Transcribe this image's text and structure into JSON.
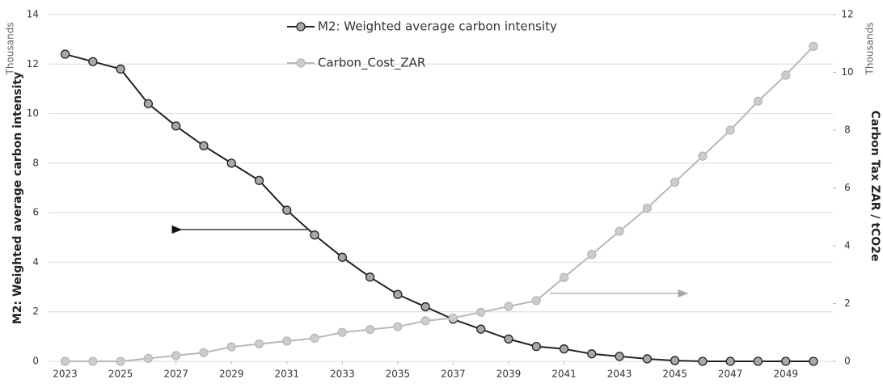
{
  "chart_data": {
    "type": "line",
    "y_label": "M2: Weighted average carbon intensity",
    "y2_label": "Carbon Tax ZAR / tCO2e",
    "y_unit": "Thousands",
    "y2_unit": "Thousands",
    "x": [
      2023,
      2024,
      2025,
      2026,
      2027,
      2028,
      2029,
      2030,
      2031,
      2032,
      2033,
      2034,
      2035,
      2036,
      2037,
      2038,
      2039,
      2040,
      2041,
      2042,
      2043,
      2044,
      2045,
      2046,
      2047,
      2048,
      2049,
      2050
    ],
    "series": [
      {
        "name": "M2: Weighted average carbon intensity",
        "color": "#222222",
        "marker_fill": "#a8a8a8",
        "axis": "y",
        "values": [
          12.4,
          12.1,
          11.8,
          10.4,
          9.5,
          8.7,
          8.0,
          7.3,
          6.1,
          5.1,
          4.2,
          3.4,
          2.7,
          2.2,
          1.7,
          1.3,
          0.9,
          0.6,
          0.5,
          0.3,
          0.2,
          0.1,
          0.03,
          0,
          0,
          0,
          0,
          0
        ]
      },
      {
        "name": "Carbon_Cost_ZAR",
        "color": "#b8b8b8",
        "marker_fill": "#cccccc",
        "axis": "y2",
        "values": [
          0,
          0,
          0,
          0.1,
          0.2,
          0.3,
          0.5,
          0.6,
          0.7,
          0.8,
          1.0,
          1.1,
          1.2,
          1.4,
          1.5,
          1.7,
          1.9,
          2.1,
          2.9,
          3.7,
          4.5,
          5.3,
          6.2,
          7.1,
          8.0,
          9.0,
          9.9,
          10.9
        ]
      }
    ],
    "xlim": [
      2022.4,
      2050.7
    ],
    "xticks": [
      2023,
      2025,
      2027,
      2029,
      2031,
      2033,
      2035,
      2037,
      2039,
      2041,
      2043,
      2045,
      2047,
      2049
    ],
    "ylim": [
      0,
      14
    ],
    "yticks": [
      0,
      2,
      4,
      6,
      8,
      10,
      12,
      14
    ],
    "y2lim": [
      0,
      12
    ],
    "y2ticks": [
      0,
      2,
      4,
      6,
      8,
      10,
      12
    ],
    "grid": true,
    "legend": "top"
  }
}
